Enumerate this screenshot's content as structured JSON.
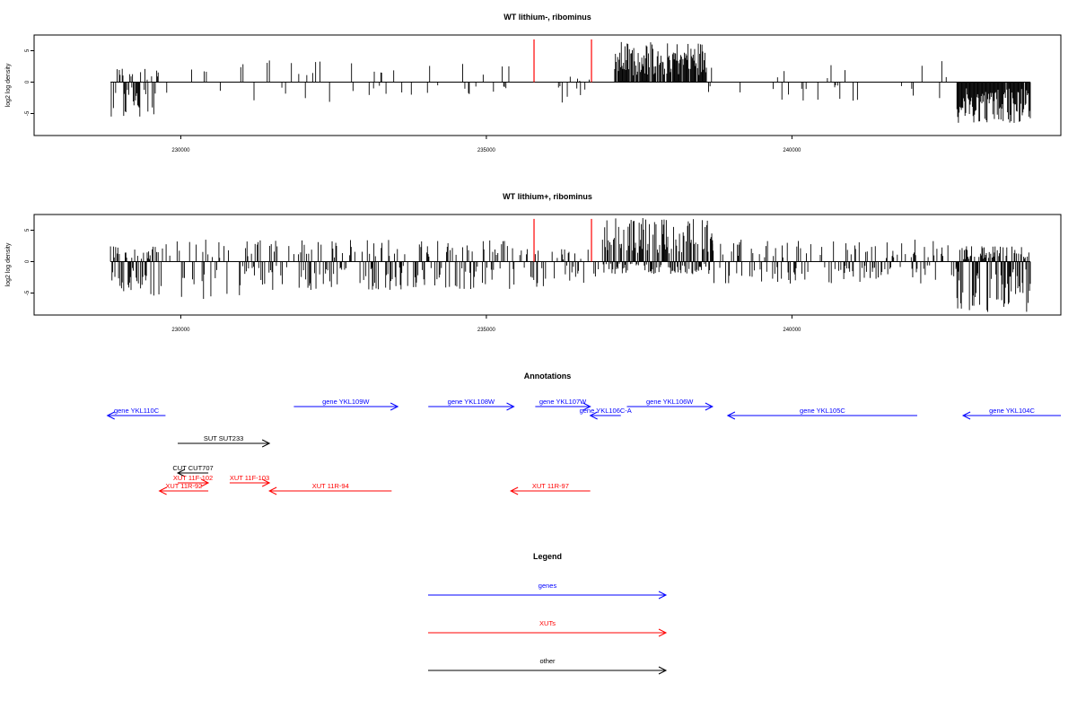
{
  "colors": {
    "genes": "#0000ff",
    "xuts": "#ff0000",
    "other": "#000000",
    "marker": "#ff0000",
    "bars": "#000000"
  },
  "chart_data": [
    {
      "type": "bar",
      "title": "WT lithium-, ribominus",
      "ylabel": "log2 log density",
      "xlim": [
        227600,
        244400
      ],
      "ylim": [
        -8.5,
        7.5
      ],
      "x_ticks": [
        230000,
        235000,
        240000
      ],
      "x_tick_labels": [
        "230000",
        "235000",
        "240000"
      ],
      "y_ticks": [
        -5,
        0,
        5
      ],
      "y_tick_labels": [
        "-5",
        "0",
        "5"
      ],
      "red_markers": [
        235780,
        236720
      ],
      "baseline_range": [
        228850,
        243900
      ],
      "series": [
        {
          "region": [
            228850,
            229650
          ],
          "density": 0.55,
          "pos_max": 2.5,
          "neg_max": -5.5
        },
        {
          "region": [
            229650,
            233400
          ],
          "density": 0.08,
          "pos_max": 3.5,
          "neg_max": -3.5
        },
        {
          "region": [
            233400,
            235450
          ],
          "density": 0.12,
          "pos_max": 4.5,
          "neg_max": -2.0
        },
        {
          "region": [
            236000,
            236700
          ],
          "density": 0.1,
          "pos_max": 1.0,
          "neg_max": -4.0
        },
        {
          "region": [
            237100,
            238600
          ],
          "density": 0.9,
          "pos_max": 6.5,
          "neg_max": 0
        },
        {
          "region": [
            238600,
            242700
          ],
          "density": 0.07,
          "pos_max": 3.5,
          "neg_max": -3.0
        },
        {
          "region": [
            242700,
            243900
          ],
          "density": 0.95,
          "pos_max": 0,
          "neg_max": -6.5
        }
      ]
    },
    {
      "type": "bar",
      "title": "WT lithium+, ribominus",
      "ylabel": "log2 log density",
      "xlim": [
        227600,
        244400
      ],
      "ylim": [
        -8.5,
        7.5
      ],
      "x_ticks": [
        230000,
        235000,
        240000
      ],
      "x_tick_labels": [
        "230000",
        "235000",
        "240000"
      ],
      "y_ticks": [
        -5,
        0,
        5
      ],
      "y_tick_labels": [
        "-5",
        "0",
        "5"
      ],
      "red_markers": [
        235780,
        236720
      ],
      "baseline_range": [
        228850,
        243900
      ],
      "series": [
        {
          "region": [
            228850,
            229700
          ],
          "density": 0.75,
          "pos_max": 2.5,
          "neg_max": -5.5
        },
        {
          "region": [
            229700,
            231000
          ],
          "density": 0.3,
          "pos_max": 3.5,
          "neg_max": -6.0
        },
        {
          "region": [
            231000,
            235500
          ],
          "density": 0.5,
          "pos_max": 3.5,
          "neg_max": -4.5
        },
        {
          "region": [
            235500,
            236900
          ],
          "density": 0.35,
          "pos_max": 2.0,
          "neg_max": -4.0
        },
        {
          "region": [
            236900,
            238700
          ],
          "density": 1.0,
          "pos_max": 7.0,
          "neg_max": -2.0
        },
        {
          "region": [
            238700,
            242700
          ],
          "density": 0.4,
          "pos_max": 3.5,
          "neg_max": -3.5
        },
        {
          "region": [
            242700,
            243900
          ],
          "density": 1.0,
          "pos_max": 2.5,
          "neg_max": -8.0
        }
      ]
    }
  ],
  "annotations": {
    "title": "Annotations",
    "genes": [
      {
        "label": "gene YKL110C",
        "start": 228800,
        "end": 229750,
        "dir": "left",
        "row": 2
      },
      {
        "label": "gene YKL109W",
        "start": 231850,
        "end": 233550,
        "dir": "right",
        "row": 1
      },
      {
        "label": "gene YKL108W",
        "start": 234050,
        "end": 235450,
        "dir": "right",
        "row": 1
      },
      {
        "label": "gene YKL107W",
        "start": 235800,
        "end": 236700,
        "dir": "right",
        "row": 1
      },
      {
        "label": "gene YKL106C-A",
        "start": 236700,
        "end": 237200,
        "dir": "left",
        "row": 2
      },
      {
        "label": "gene YKL106W",
        "start": 237300,
        "end": 238700,
        "dir": "right",
        "row": 1
      },
      {
        "label": "gene YKL105C",
        "start": 238950,
        "end": 242050,
        "dir": "left",
        "row": 2
      },
      {
        "label": "gene YKL104C",
        "start": 242800,
        "end": 244400,
        "dir": "left",
        "row": 2
      }
    ],
    "suts": [
      {
        "label": "SUT SUT233",
        "start": 229950,
        "end": 231450,
        "dir": "right",
        "row": 3
      }
    ],
    "cuts": [
      {
        "label": "CUT CUT707",
        "start": 229950,
        "end": 230450,
        "dir": "left",
        "row": 4
      }
    ],
    "xuts": [
      {
        "label": "XUT 11F-102",
        "start": 229950,
        "end": 230450,
        "dir": "right",
        "row": 5
      },
      {
        "label": "XUT 11F-103",
        "start": 230800,
        "end": 231450,
        "dir": "right",
        "row": 5
      },
      {
        "label": "XUT 11R-92",
        "start": 229650,
        "end": 230450,
        "dir": "left",
        "row": 6
      },
      {
        "label": "XUT 11R-94",
        "start": 231450,
        "end": 233450,
        "dir": "left",
        "row": 6
      },
      {
        "label": "XUT 11R-97",
        "start": 235400,
        "end": 236700,
        "dir": "left",
        "row": 6
      }
    ]
  },
  "legend": {
    "title": "Legend",
    "items": [
      {
        "label": "genes",
        "color": "#0000ff"
      },
      {
        "label": "XUTs",
        "color": "#ff0000"
      },
      {
        "label": "other",
        "color": "#000000"
      }
    ]
  }
}
